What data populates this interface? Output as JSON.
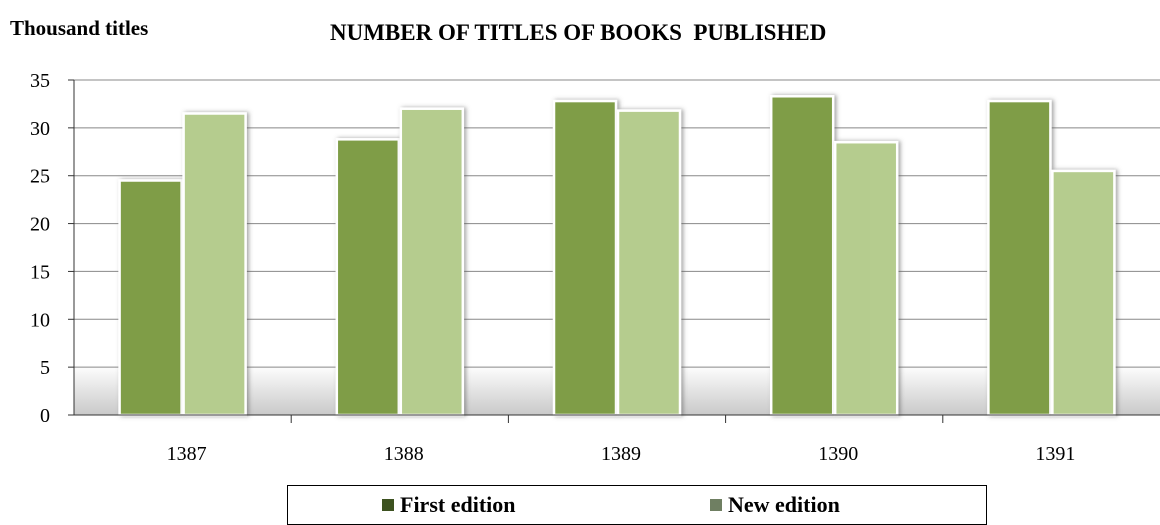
{
  "chart_data": {
    "type": "bar",
    "title": "NUMBER OF TITLES OF BOOKS  PUBLISHED",
    "ylabel": "Thousand titles",
    "xlabel": "",
    "categories": [
      "1387",
      "1388",
      "1389",
      "1390",
      "1391"
    ],
    "series": [
      {
        "name": "First edition",
        "color": "#7f9d47",
        "values": [
          24.5,
          28.8,
          32.8,
          33.3,
          32.8
        ]
      },
      {
        "name": "New edition",
        "color": "#b5cc8e",
        "values": [
          31.5,
          32.0,
          31.8,
          28.5,
          25.5
        ]
      }
    ],
    "ylim": [
      0,
      35
    ],
    "yticks": [
      "0",
      "5",
      "10",
      "15",
      "20",
      "25",
      "30",
      "35"
    ],
    "grid": true,
    "legend_position": "bottom"
  }
}
